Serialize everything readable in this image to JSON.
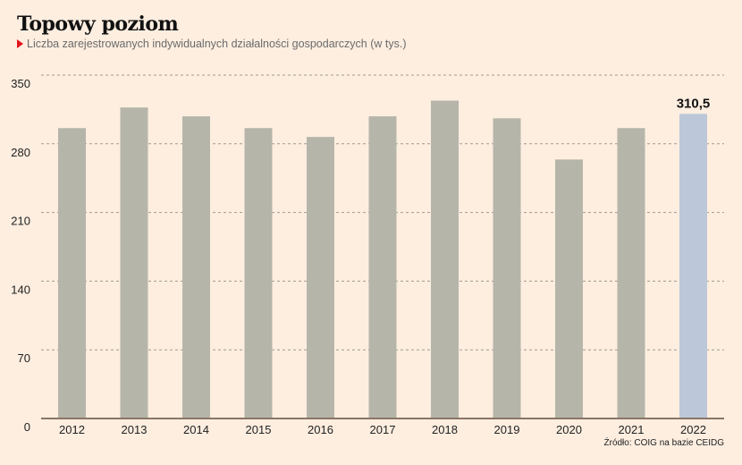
{
  "chart_data": {
    "type": "bar",
    "title": "Topowy poziom",
    "subtitle": "Liczba zarejestrowanych indywidualnych działalności gospodarczych (w tys.)",
    "source": "Źródło: COIG na bazie CEIDG",
    "xlabel": "",
    "ylabel": "",
    "categories": [
      "2012",
      "2013",
      "2014",
      "2015",
      "2016",
      "2017",
      "2018",
      "2019",
      "2020",
      "2021",
      "2022"
    ],
    "values": [
      296,
      317,
      308,
      296,
      287,
      308,
      324,
      306,
      264,
      296,
      310.5
    ],
    "highlight_index": 10,
    "data_labels": [
      {
        "index": 10,
        "text": "310,5"
      }
    ],
    "ylim": [
      0,
      350
    ],
    "yticks": [
      0,
      70,
      140,
      210,
      280,
      350
    ],
    "grid": true,
    "colors": {
      "bar": "#b6b5aa",
      "highlight": "#bcc8d9",
      "grid": "#a09a90",
      "axis": "#8a7565",
      "accent": "#e3131b",
      "background": "#fdeee0"
    }
  }
}
